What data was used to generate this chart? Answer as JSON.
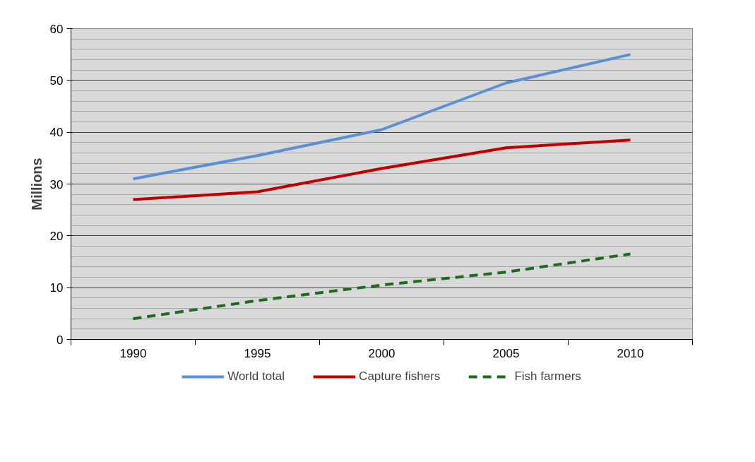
{
  "chart_data": {
    "type": "line",
    "ylabel": "Millions",
    "categories": [
      "1990",
      "1995",
      "2000",
      "2005",
      "2010"
    ],
    "series": [
      {
        "name": "World total",
        "color": "#5b8fd6",
        "values": [
          31,
          35.5,
          40.5,
          49.5,
          55
        ]
      },
      {
        "name": "Capture fishers",
        "color": "#c00000",
        "values": [
          27,
          28.5,
          33,
          37,
          38.5
        ]
      },
      {
        "name": "Fish farmers",
        "color": "#1e6b1e",
        "values": [
          4,
          7.5,
          10.5,
          13,
          16.5
        ],
        "line_style": "dashed"
      }
    ],
    "ylim": [
      0,
      60
    ],
    "yticks": [
      0,
      10,
      20,
      30,
      40,
      50,
      60
    ],
    "grid": "y",
    "legend": "bottom",
    "marker": "none"
  }
}
